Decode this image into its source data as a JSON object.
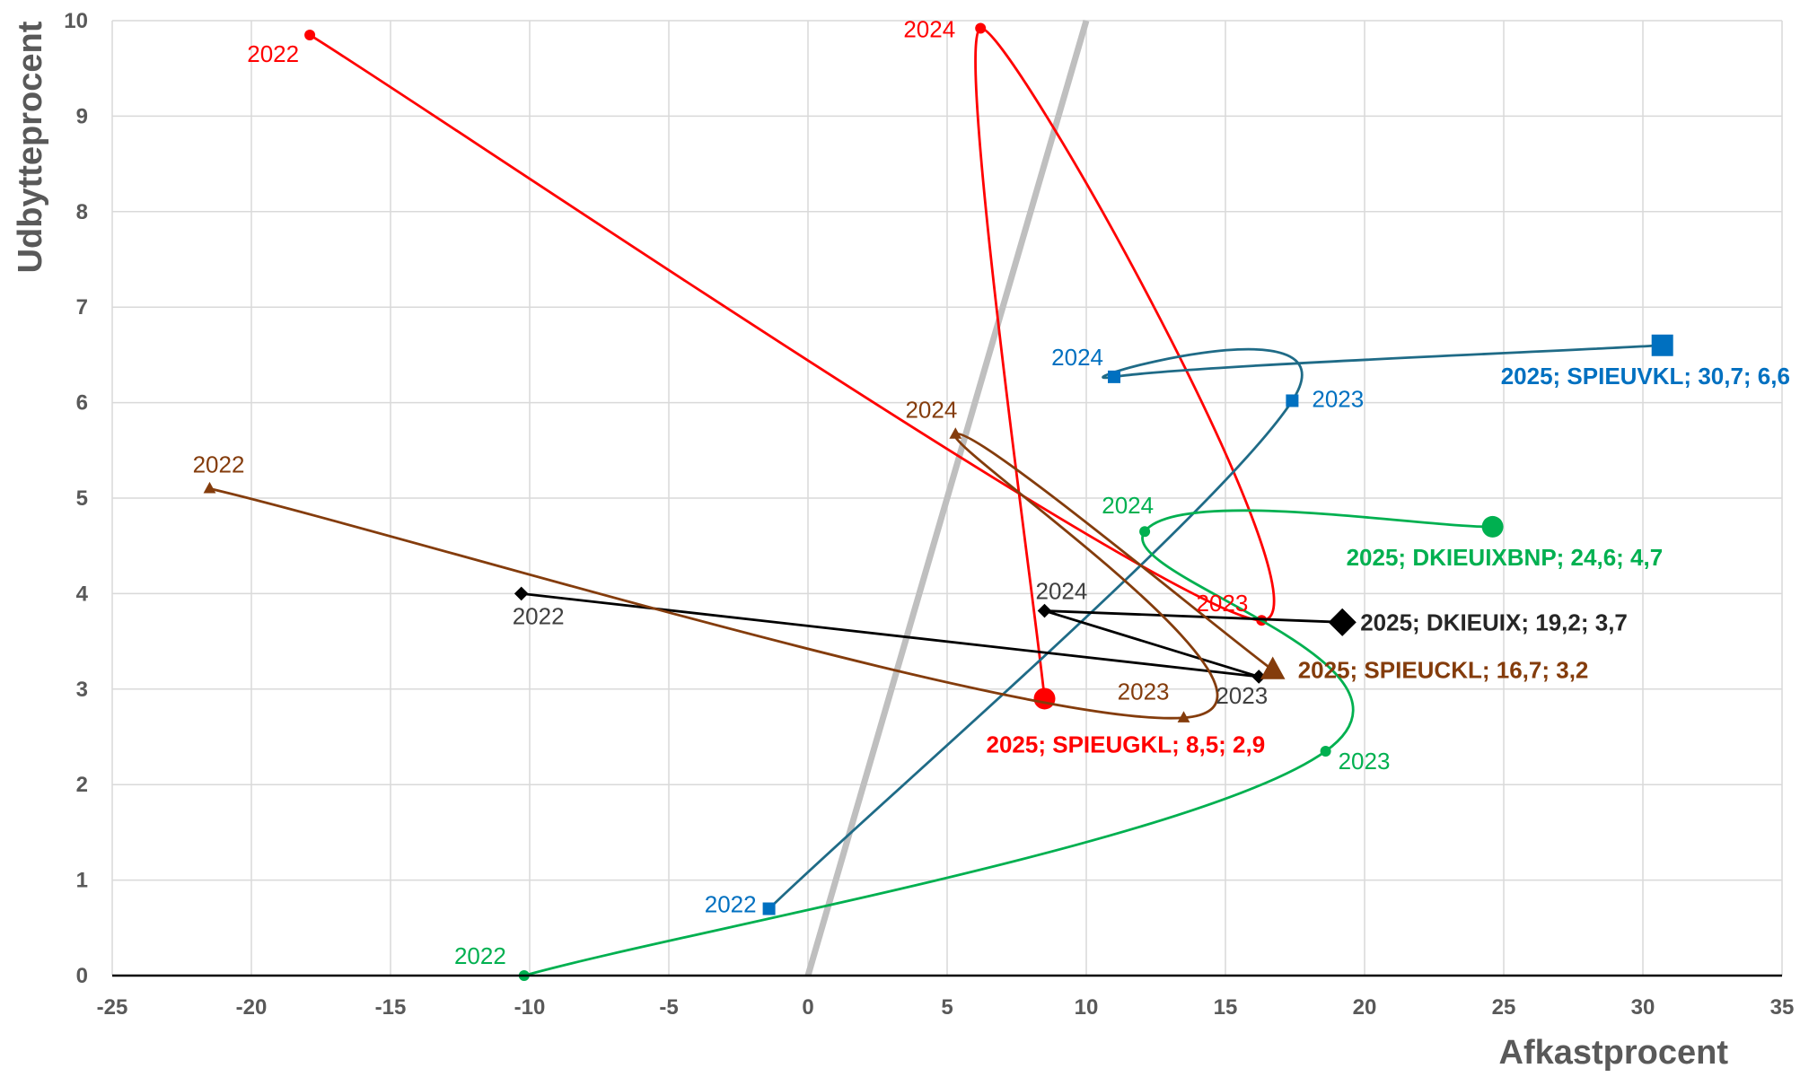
{
  "chart_data": {
    "type": "scatter",
    "title": "",
    "xlabel": "Afkastprocent",
    "ylabel": "Udbytteprocent",
    "xlim": [
      -25,
      35
    ],
    "ylim": [
      0,
      10
    ],
    "xticks": [
      "-25",
      "-20",
      "-15",
      "-10",
      "-5",
      "0",
      "5",
      "10",
      "15",
      "20",
      "25",
      "30",
      "35"
    ],
    "yticks": [
      "0",
      "1",
      "2",
      "3",
      "4",
      "5",
      "6",
      "7",
      "8",
      "9",
      "10"
    ],
    "grid": true,
    "legend": "none",
    "reference_line": {
      "color": "#bfbfbf",
      "from": [
        0,
        0
      ],
      "to": [
        10,
        10
      ]
    },
    "series": [
      {
        "name": "SPIEUGKL",
        "color": "#ff0000",
        "marker": "circle",
        "points": [
          {
            "x": -17.9,
            "y": 9.85,
            "label": "2022"
          },
          {
            "x": 16.3,
            "y": 3.72,
            "label": "2023"
          },
          {
            "x": 6.2,
            "y": 9.92,
            "label": "2024"
          },
          {
            "x": 8.5,
            "y": 2.9,
            "label": "2025; SPIEUGKL; 8,5; 2,9"
          }
        ]
      },
      {
        "name": "SPIEUVKL",
        "color": "#0070c0",
        "marker": "square",
        "points": [
          {
            "x": -1.4,
            "y": 0.7,
            "label": "2022"
          },
          {
            "x": 17.4,
            "y": 6.02,
            "label": "2023"
          },
          {
            "x": 11.0,
            "y": 6.27,
            "label": "2024"
          },
          {
            "x": 30.7,
            "y": 6.6,
            "label": "2025; SPIEUVKL; 30,7; 6,6"
          }
        ]
      },
      {
        "name": "DKIEUIXBNP",
        "color": "#00b050",
        "marker": "circle",
        "points": [
          {
            "x": -10.2,
            "y": 0.0,
            "label": "2022"
          },
          {
            "x": 18.6,
            "y": 2.35,
            "label": "2023"
          },
          {
            "x": 12.1,
            "y": 4.65,
            "label": "2024"
          },
          {
            "x": 24.6,
            "y": 4.7,
            "label": "2025; DKIEUIXBNP; 24,6; 4,7"
          }
        ]
      },
      {
        "name": "DKIEUIX",
        "color": "#000000",
        "marker": "diamond",
        "points": [
          {
            "x": -10.3,
            "y": 4.0,
            "label": "2022"
          },
          {
            "x": 16.2,
            "y": 3.13,
            "label": "2023"
          },
          {
            "x": 8.5,
            "y": 3.82,
            "label": "2024"
          },
          {
            "x": 19.2,
            "y": 3.7,
            "label": "2025; DKIEUIX; 19,2; 3,7"
          }
        ]
      },
      {
        "name": "SPIEUCKL",
        "color": "#843c0c",
        "marker": "triangle",
        "points": [
          {
            "x": -21.5,
            "y": 5.1,
            "label": "2022"
          },
          {
            "x": 13.5,
            "y": 2.7,
            "label": "2023"
          },
          {
            "x": 5.3,
            "y": 5.67,
            "label": "2024"
          },
          {
            "x": 16.7,
            "y": 3.2,
            "label": "2025; SPIEUCKL; 16,7; 3,2"
          }
        ]
      }
    ]
  }
}
